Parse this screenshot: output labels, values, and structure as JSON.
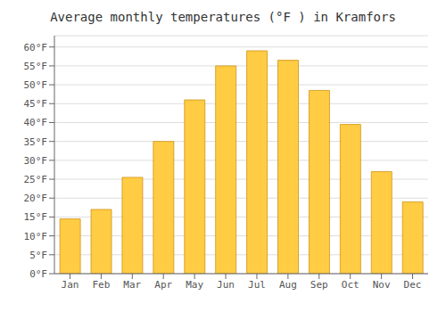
{
  "chart_data": {
    "type": "bar",
    "title": "Average monthly temperatures (°F ) in Kramfors",
    "categories": [
      "Jan",
      "Feb",
      "Mar",
      "Apr",
      "May",
      "Jun",
      "Jul",
      "Aug",
      "Sep",
      "Oct",
      "Nov",
      "Dec"
    ],
    "values": [
      14.5,
      17.0,
      25.5,
      35.0,
      46.0,
      55.0,
      59.0,
      56.5,
      48.5,
      39.5,
      27.0,
      19.0
    ],
    "color": "#FFCC44",
    "ylim": [
      0,
      63
    ],
    "yticks": [
      {
        "value": 0,
        "label": "0°F"
      },
      {
        "value": 5,
        "label": "5°F"
      },
      {
        "value": 10,
        "label": "10°F"
      },
      {
        "value": 15,
        "label": "15°F"
      },
      {
        "value": 20,
        "label": "20°F"
      },
      {
        "value": 25,
        "label": "25°F"
      },
      {
        "value": 30,
        "label": "30°F"
      },
      {
        "value": 35,
        "label": "35°F"
      },
      {
        "value": 40,
        "label": "40°F"
      },
      {
        "value": 45,
        "label": "45°F"
      },
      {
        "value": 50,
        "label": "50°F"
      },
      {
        "value": 55,
        "label": "55°F"
      },
      {
        "value": 60,
        "label": "60°F"
      }
    ],
    "grid": true
  }
}
